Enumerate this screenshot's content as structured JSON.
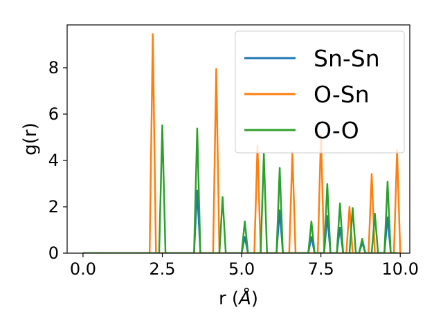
{
  "chart_data": {
    "type": "line",
    "xlabel_main": "r (",
    "xlabel_unit": "Å",
    "xlabel_tail": ")",
    "ylabel": "g(r)",
    "xlim": [
      -0.5,
      10.3
    ],
    "ylim": [
      0,
      9.85
    ],
    "xticks": [
      0.0,
      2.5,
      5.0,
      7.5,
      10.0
    ],
    "xtick_labels": [
      "0.0",
      "2.5",
      "5.0",
      "7.5",
      "10.0"
    ],
    "yticks": [
      0,
      2,
      4,
      6,
      8
    ],
    "ytick_labels": [
      "0",
      "2",
      "4",
      "6",
      "8"
    ],
    "grid": false,
    "legend_position": "upper-right",
    "peak_halfwidth": 0.1,
    "x_range": [
      0.0,
      9.9
    ],
    "series": [
      {
        "name": "Sn-Sn",
        "color": "#1f77b4",
        "peaks": [
          [
            3.6,
            2.7
          ],
          [
            5.1,
            0.7
          ],
          [
            6.2,
            1.85
          ],
          [
            7.2,
            0.7
          ],
          [
            7.7,
            1.6
          ],
          [
            8.1,
            1.1
          ],
          [
            8.8,
            0.45
          ],
          [
            9.6,
            1.55
          ]
        ]
      },
      {
        "name": "O-Sn",
        "color": "#ff7f0e",
        "peaks": [
          [
            2.2,
            9.45
          ],
          [
            4.2,
            7.95
          ],
          [
            5.5,
            4.65
          ],
          [
            6.6,
            4.35
          ],
          [
            7.5,
            5.1
          ],
          [
            8.4,
            2.0
          ],
          [
            9.1,
            3.42
          ],
          [
            9.9,
            4.45
          ]
        ]
      },
      {
        "name": "O-O",
        "color": "#2ca02c",
        "peaks": [
          [
            2.5,
            5.52
          ],
          [
            3.6,
            5.38
          ],
          [
            4.4,
            2.42
          ],
          [
            5.1,
            1.37
          ],
          [
            5.7,
            4.3
          ],
          [
            6.2,
            3.68
          ],
          [
            7.2,
            1.37
          ],
          [
            7.7,
            2.98
          ],
          [
            8.1,
            2.15
          ],
          [
            8.5,
            1.95
          ],
          [
            8.8,
            0.62
          ],
          [
            9.2,
            1.7
          ],
          [
            9.6,
            3.08
          ]
        ]
      }
    ]
  }
}
